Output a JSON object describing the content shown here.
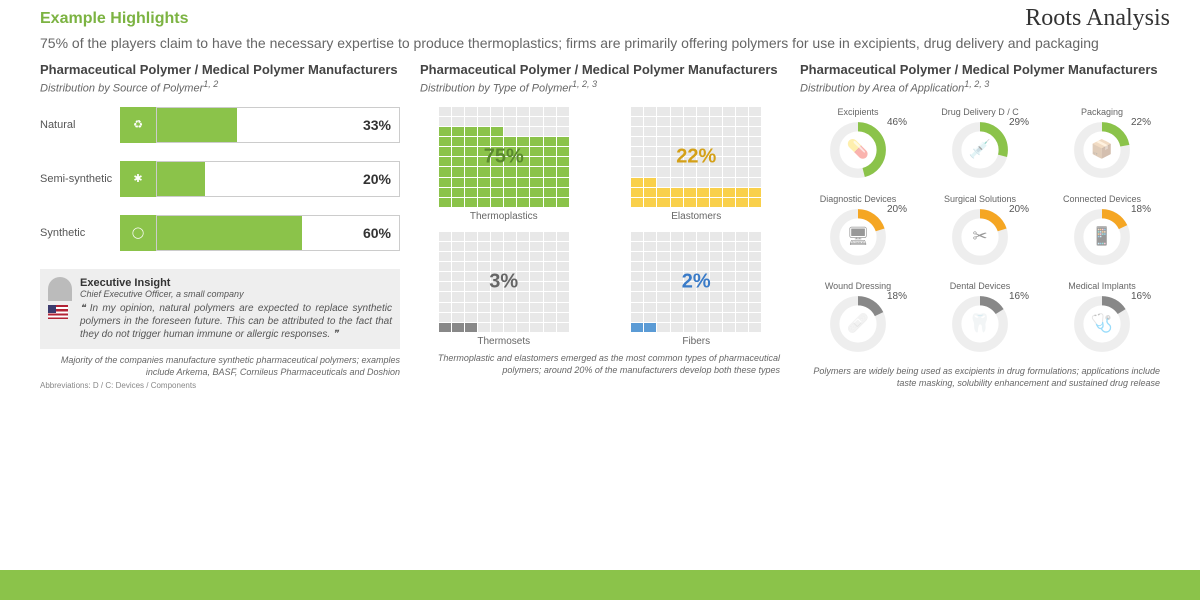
{
  "brand": "Roots Analysis",
  "header_title": "Example Highlights",
  "header_subtitle": "75% of the players claim to have the necessary expertise to produce thermoplastics; firms are primarily offering polymers for use in excipients, drug delivery and packaging",
  "accent_color": "#7cb342",
  "bar_color": "#8bc34a",
  "col1": {
    "title": "Pharmaceutical Polymer / Medical Polymer Manufacturers",
    "subtitle": "Distribution by Source of Polymer",
    "sup": "1, 2",
    "bars": [
      {
        "label": "Natural",
        "pct": 33
      },
      {
        "label": "Semi-synthetic",
        "pct": 20
      },
      {
        "label": "Synthetic",
        "pct": 60
      }
    ],
    "insight_title": "Executive Insight",
    "insight_role": "Chief Executive Officer, a small company",
    "insight_quote": "In my opinion, natural polymers are expected to replace synthetic polymers in the foreseen future. This can be attributed to the fact that they do not trigger human immune or allergic responses.",
    "caption": "Majority of the companies manufacture synthetic pharmaceutical polymers; examples include Arkema, BASF, Cornileus Pharmaceuticals and Doshion",
    "abbrev": "Abbreviations: D / C: Devices / Components"
  },
  "col2": {
    "title": "Pharmaceutical Polymer / Medical Polymer Manufacturers",
    "subtitle": "Distribution by Type of Polymer",
    "sup": "1, 2, 3",
    "items": [
      {
        "name": "Thermoplastics",
        "pct": 75,
        "color": "#8bc34a",
        "text": "#5a8a2e"
      },
      {
        "name": "Elastomers",
        "pct": 22,
        "color": "#f9d04b",
        "text": "#d4a017"
      },
      {
        "name": "Thermosets",
        "pct": 3,
        "color": "#888888",
        "text": "#666"
      },
      {
        "name": "Fibers",
        "pct": 2,
        "color": "#5b9bd5",
        "text": "#3a7bc8"
      }
    ],
    "caption": "Thermoplastic and elastomers emerged as the most common types of pharmaceutical polymers; around 20% of the manufacturers develop both these types"
  },
  "col3": {
    "title": "Pharmaceutical Polymer / Medical Polymer Manufacturers",
    "subtitle": "Distribution by Area of Application",
    "sup": "1, 2, 3",
    "items": [
      {
        "name": "Excipients",
        "pct": 46,
        "color": "#8bc34a"
      },
      {
        "name": "Drug Delivery D / C",
        "pct": 29,
        "color": "#8bc34a"
      },
      {
        "name": "Packaging",
        "pct": 22,
        "color": "#8bc34a"
      },
      {
        "name": "Diagnostic Devices",
        "pct": 20,
        "color": "#f5a623"
      },
      {
        "name": "Surgical Solutions",
        "pct": 20,
        "color": "#f5a623"
      },
      {
        "name": "Connected Devices",
        "pct": 18,
        "color": "#f5a623"
      },
      {
        "name": "Wound Dressing",
        "pct": 18,
        "color": "#888"
      },
      {
        "name": "Dental Devices",
        "pct": 16,
        "color": "#888"
      },
      {
        "name": "Medical Implants",
        "pct": 16,
        "color": "#888"
      }
    ],
    "caption": "Polymers are widely being used as excipients in drug formulations; applications include taste masking, solubility enhancement and sustained drug release"
  }
}
